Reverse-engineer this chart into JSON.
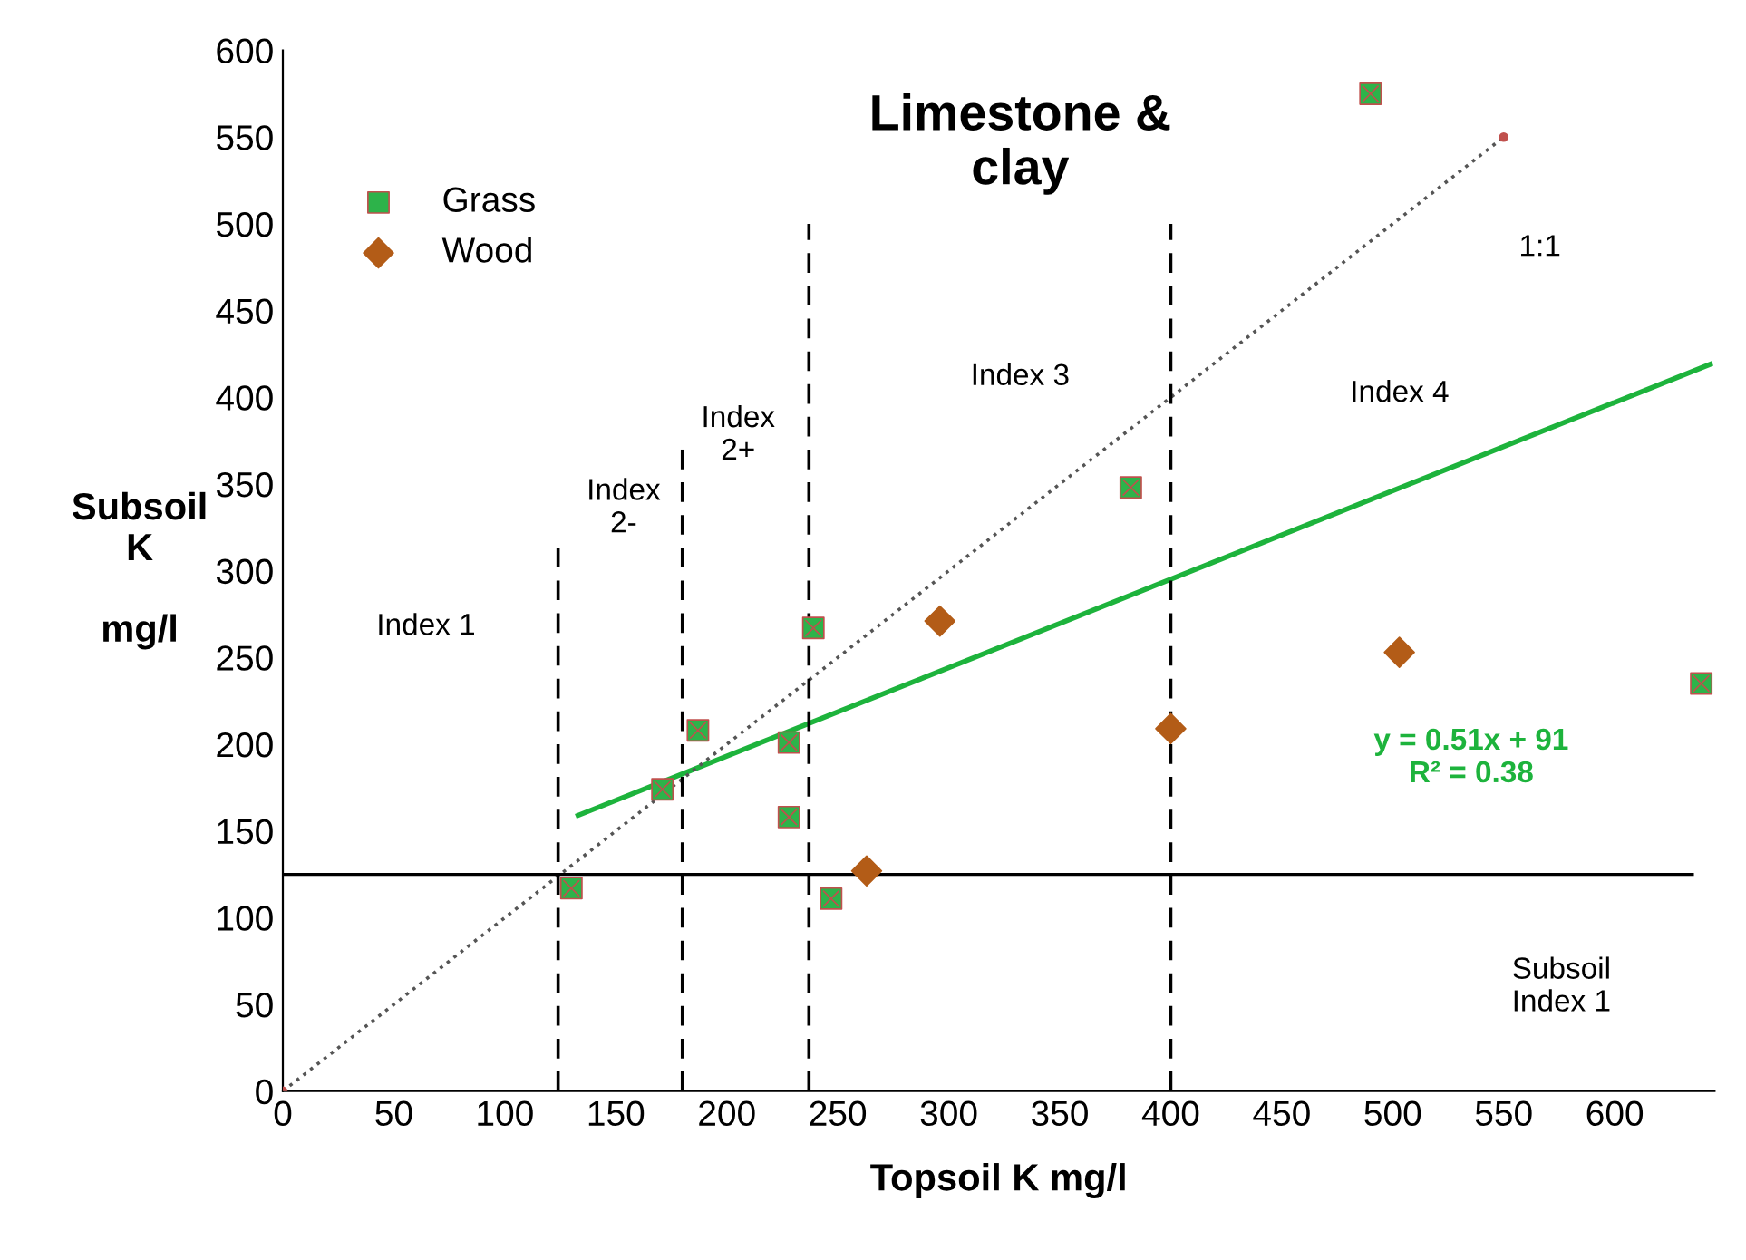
{
  "chart_data": {
    "type": "scatter",
    "title": "Limestone &\nclay",
    "xlabel": "Topsoil K mg/l",
    "ylabel": "Subsoil\nK\n\nmg/l",
    "xlim": [
      0,
      645
    ],
    "xticks": [
      0,
      50,
      100,
      150,
      200,
      250,
      300,
      350,
      400,
      450,
      500,
      550,
      600
    ],
    "ylim": [
      0,
      600
    ],
    "yticks": [
      0,
      50,
      100,
      150,
      200,
      250,
      300,
      350,
      400,
      450,
      500,
      550,
      600
    ],
    "grid": false,
    "legend": "top left",
    "series": [
      {
        "name": "Grass",
        "marker": "square",
        "color": "#2db34a",
        "x": [
          130,
          171,
          187,
          228,
          228,
          239,
          247,
          382,
          490,
          639
        ],
        "values": [
          117,
          174,
          208,
          201,
          158,
          267,
          111,
          348,
          575,
          235
        ]
      },
      {
        "name": "Wood",
        "marker": "diamond",
        "color": "#b35c17",
        "x": [
          263,
          296,
          400,
          503
        ],
        "values": [
          127,
          271,
          209,
          253
        ]
      },
      {
        "type": "line",
        "color": "#1db33c",
        "line_style": "solid",
        "x": [
          133,
          643
        ],
        "values": [
          159,
          419
        ]
      },
      {
        "type": "line",
        "color": "#555555",
        "line_style": "dotted",
        "x": [
          0,
          550
        ],
        "values": [
          0,
          550
        ]
      },
      {
        "type": "scatter",
        "marker": "circle",
        "color": "#c0504d",
        "x": [
          0,
          550
        ],
        "values": [
          0,
          550
        ]
      },
      {
        "type": "line",
        "color": "#000000",
        "line_style": "dashed",
        "x": [
          124,
          124
        ],
        "values": [
          0,
          315
        ]
      },
      {
        "type": "line",
        "color": "#000000",
        "line_style": "dashed",
        "x": [
          180,
          180
        ],
        "values": [
          0,
          370
        ]
      },
      {
        "type": "line",
        "color": "#000000",
        "line_style": "dashed",
        "x": [
          237,
          237
        ],
        "values": [
          0,
          500
        ]
      },
      {
        "type": "line",
        "color": "#000000",
        "line_style": "dashed",
        "x": [
          400,
          400
        ],
        "values": [
          0,
          500
        ]
      },
      {
        "type": "line",
        "color": "#000000",
        "line_style": "solid",
        "x": [
          0,
          635
        ],
        "values": [
          125,
          125
        ]
      }
    ],
    "annotations": [
      "Index 1",
      "Index\n2-",
      "Index\n2+",
      "Index 3",
      "Index 4",
      "1:1",
      "y = 0.51x + 91\nR² = 0.38",
      "Subsoil\nIndex 1"
    ]
  }
}
